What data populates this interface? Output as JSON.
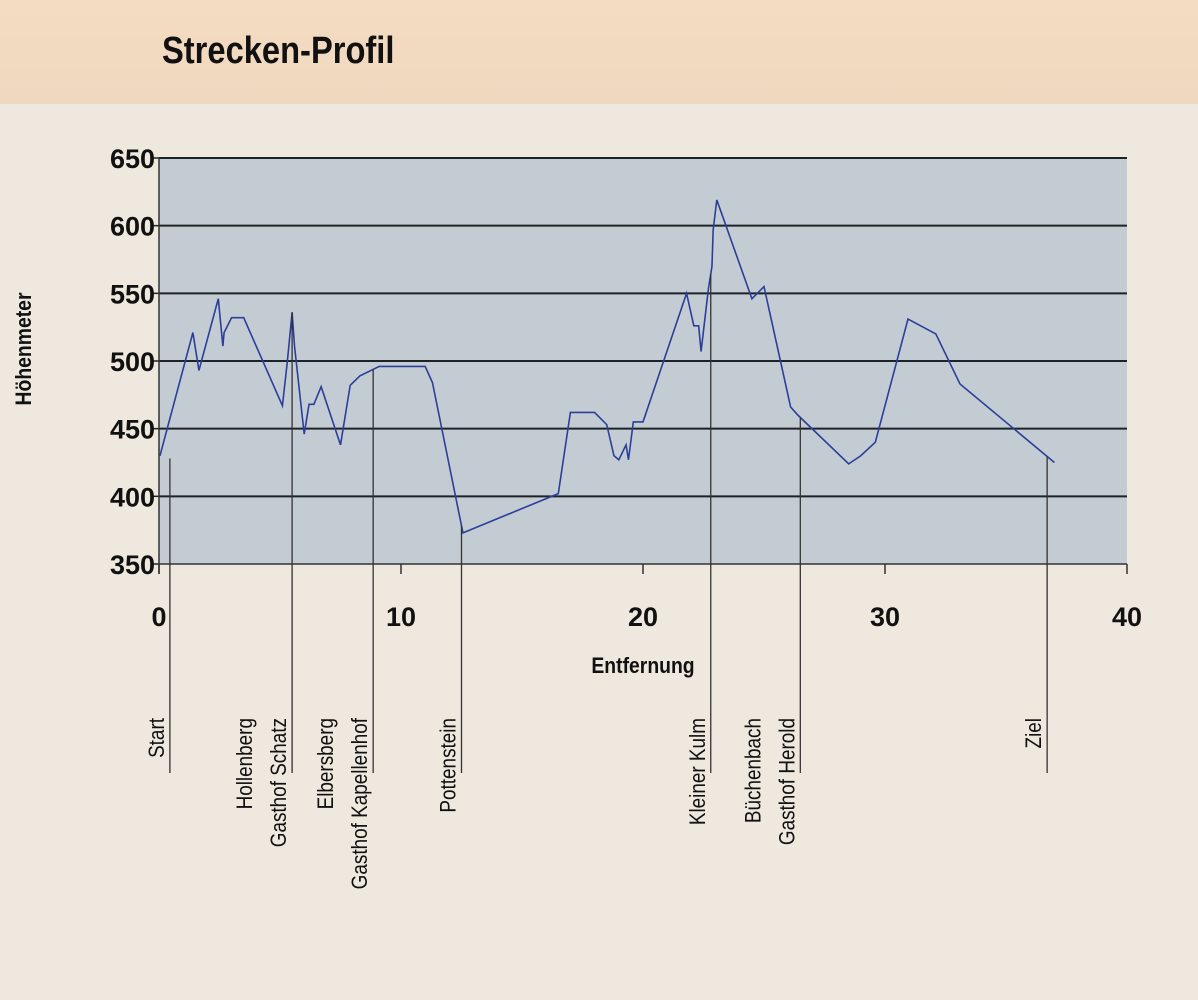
{
  "header": {
    "title": "Strecken-Profil"
  },
  "chart_data": {
    "type": "line",
    "title": "Strecken-Profil",
    "xlabel": "Entfernung",
    "ylabel": "Höhenmeter",
    "xlim": [
      0,
      40
    ],
    "ylim": [
      350,
      650
    ],
    "xticks": [
      0,
      10,
      20,
      30,
      40
    ],
    "yticks": [
      350,
      400,
      450,
      500,
      550,
      600,
      650
    ],
    "grid": "horizontal",
    "colors": {
      "line": "#2b3f9a",
      "plot_bg": "#c4ccd3",
      "grid": "#1c2226"
    },
    "points": [
      [
        0.04,
        430
      ],
      [
        1.4,
        521
      ],
      [
        1.65,
        493
      ],
      [
        2.45,
        546
      ],
      [
        2.64,
        511
      ],
      [
        2.69,
        521
      ],
      [
        3.0,
        532
      ],
      [
        3.5,
        532
      ],
      [
        5.1,
        467
      ],
      [
        5.3,
        499
      ],
      [
        5.5,
        536
      ],
      [
        5.6,
        511
      ],
      [
        6.0,
        446
      ],
      [
        6.2,
        468
      ],
      [
        6.4,
        468
      ],
      [
        6.7,
        481
      ],
      [
        7.5,
        438
      ],
      [
        7.9,
        482
      ],
      [
        8.3,
        489
      ],
      [
        9.1,
        496
      ],
      [
        11.0,
        496
      ],
      [
        11.3,
        484
      ],
      [
        12.56,
        373
      ],
      [
        16.5,
        402
      ],
      [
        17.0,
        462
      ],
      [
        18.0,
        462
      ],
      [
        18.5,
        453
      ],
      [
        18.8,
        430
      ],
      [
        19.0,
        427
      ],
      [
        19.3,
        438
      ],
      [
        19.4,
        427
      ],
      [
        19.6,
        455
      ],
      [
        20.0,
        455
      ],
      [
        21.8,
        550
      ],
      [
        22.1,
        526
      ],
      [
        22.3,
        526
      ],
      [
        22.4,
        507
      ],
      [
        22.7,
        553
      ],
      [
        22.85,
        570
      ],
      [
        22.9,
        597
      ],
      [
        23.05,
        619
      ],
      [
        24.5,
        546
      ],
      [
        25.0,
        555
      ],
      [
        26.1,
        466
      ],
      [
        26.4,
        460
      ],
      [
        28.5,
        424
      ],
      [
        29.0,
        430
      ],
      [
        29.6,
        440
      ],
      [
        30.95,
        531
      ],
      [
        32.1,
        520
      ],
      [
        33.1,
        483
      ],
      [
        37.0,
        425
      ]
    ],
    "markers": [
      {
        "x": 0.45,
        "labels": [
          "Start"
        ]
      },
      {
        "x": 5.5,
        "labels": [
          "Hollenberg",
          "Gasthof Schatz"
        ]
      },
      {
        "x": 8.85,
        "labels": [
          "Elbersberg",
          "Gasthof Kapellenhof"
        ]
      },
      {
        "x": 12.5,
        "labels": [
          "Pottenstein"
        ]
      },
      {
        "x": 22.8,
        "labels": [
          "Kleiner Kulm"
        ]
      },
      {
        "x": 26.5,
        "labels": [
          "Büchenbach",
          "Gasthof Herold"
        ]
      },
      {
        "x": 36.7,
        "labels": [
          "Ziel"
        ]
      }
    ]
  }
}
